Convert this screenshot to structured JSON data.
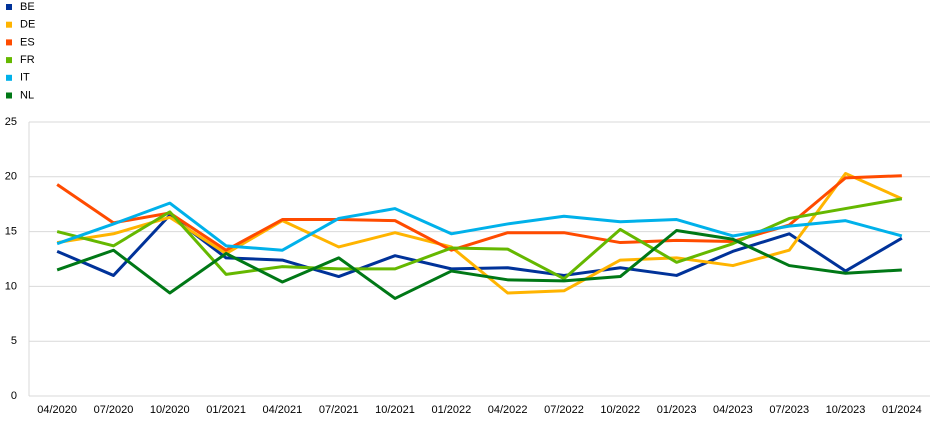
{
  "chart_data": {
    "type": "line",
    "categories": [
      "04/2020",
      "07/2020",
      "10/2020",
      "01/2021",
      "04/2021",
      "07/2021",
      "10/2021",
      "01/2022",
      "04/2022",
      "07/2022",
      "10/2022",
      "01/2023",
      "04/2023",
      "07/2023",
      "10/2023",
      "01/2024"
    ],
    "series": [
      {
        "name": "BE",
        "color": "#003299",
        "values": [
          13.2,
          11.0,
          16.5,
          12.6,
          12.4,
          10.9,
          12.8,
          11.6,
          11.7,
          11.0,
          11.7,
          11.0,
          13.2,
          14.8,
          11.4,
          14.4
        ]
      },
      {
        "name": "DE",
        "color": "#ffb400",
        "values": [
          14.0,
          14.8,
          16.3,
          13.0,
          16.0,
          13.6,
          14.9,
          13.6,
          9.4,
          9.6,
          12.4,
          12.6,
          11.9,
          13.3,
          20.3,
          18.0
        ]
      },
      {
        "name": "ES",
        "color": "#ff4b00",
        "values": [
          19.3,
          15.8,
          16.7,
          13.3,
          16.1,
          16.1,
          16.0,
          13.3,
          14.9,
          14.9,
          14.0,
          14.2,
          14.1,
          15.6,
          19.9,
          20.1
        ]
      },
      {
        "name": "FR",
        "color": "#65b800",
        "values": [
          15.0,
          13.7,
          16.8,
          11.1,
          11.8,
          11.6,
          11.6,
          13.5,
          13.4,
          10.7,
          15.2,
          12.2,
          13.9,
          16.2,
          17.1,
          18.0
        ]
      },
      {
        "name": "IT",
        "color": "#00b1ea",
        "values": [
          13.9,
          15.7,
          17.6,
          13.7,
          13.3,
          16.2,
          17.1,
          14.8,
          15.7,
          16.4,
          15.9,
          16.1,
          14.6,
          15.5,
          16.0,
          14.6
        ]
      },
      {
        "name": "NL",
        "color": "#007816",
        "values": [
          11.5,
          13.3,
          9.4,
          13.0,
          10.4,
          12.6,
          8.9,
          11.4,
          10.6,
          10.5,
          10.9,
          15.1,
          14.3,
          11.9,
          11.2,
          11.5
        ]
      }
    ],
    "ylim": [
      0,
      25
    ],
    "yticks": [
      0,
      5,
      10,
      15,
      20,
      25
    ],
    "grid": true,
    "legend": "top-left"
  }
}
